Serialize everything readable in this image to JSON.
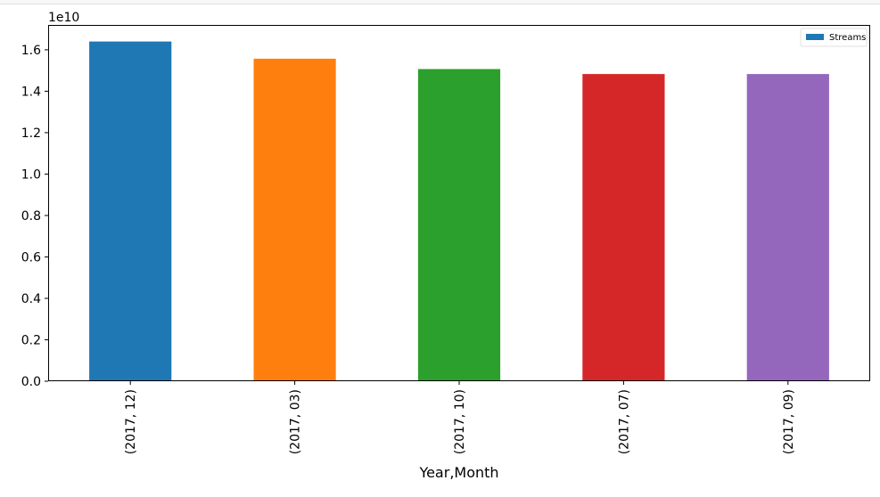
{
  "chart_data": {
    "type": "bar",
    "categories": [
      "(2017, 12)",
      "(2017, 03)",
      "(2017, 10)",
      "(2017, 07)",
      "(2017, 09)"
    ],
    "series": [
      {
        "name": "Streams",
        "values": [
          16400000000,
          15570000000,
          15070000000,
          14830000000,
          14830000000
        ]
      }
    ],
    "bar_colors": [
      "#1f77b4",
      "#ff7f0e",
      "#2ca02c",
      "#d62728",
      "#9467bd"
    ],
    "legend_color": "#1f77b4",
    "xlabel": "Year,Month",
    "ylabel": "",
    "ylim": [
      0,
      17200000000
    ],
    "yticks": [
      0,
      2000000000,
      4000000000,
      6000000000,
      8000000000,
      10000000000,
      12000000000,
      14000000000,
      16000000000
    ],
    "ytick_labels": [
      "0.0",
      "0.2",
      "0.4",
      "0.6",
      "0.8",
      "1.0",
      "1.2",
      "1.4",
      "1.6"
    ],
    "y_offset_label": "1e10",
    "legend_position": "top-right",
    "grid": false
  }
}
